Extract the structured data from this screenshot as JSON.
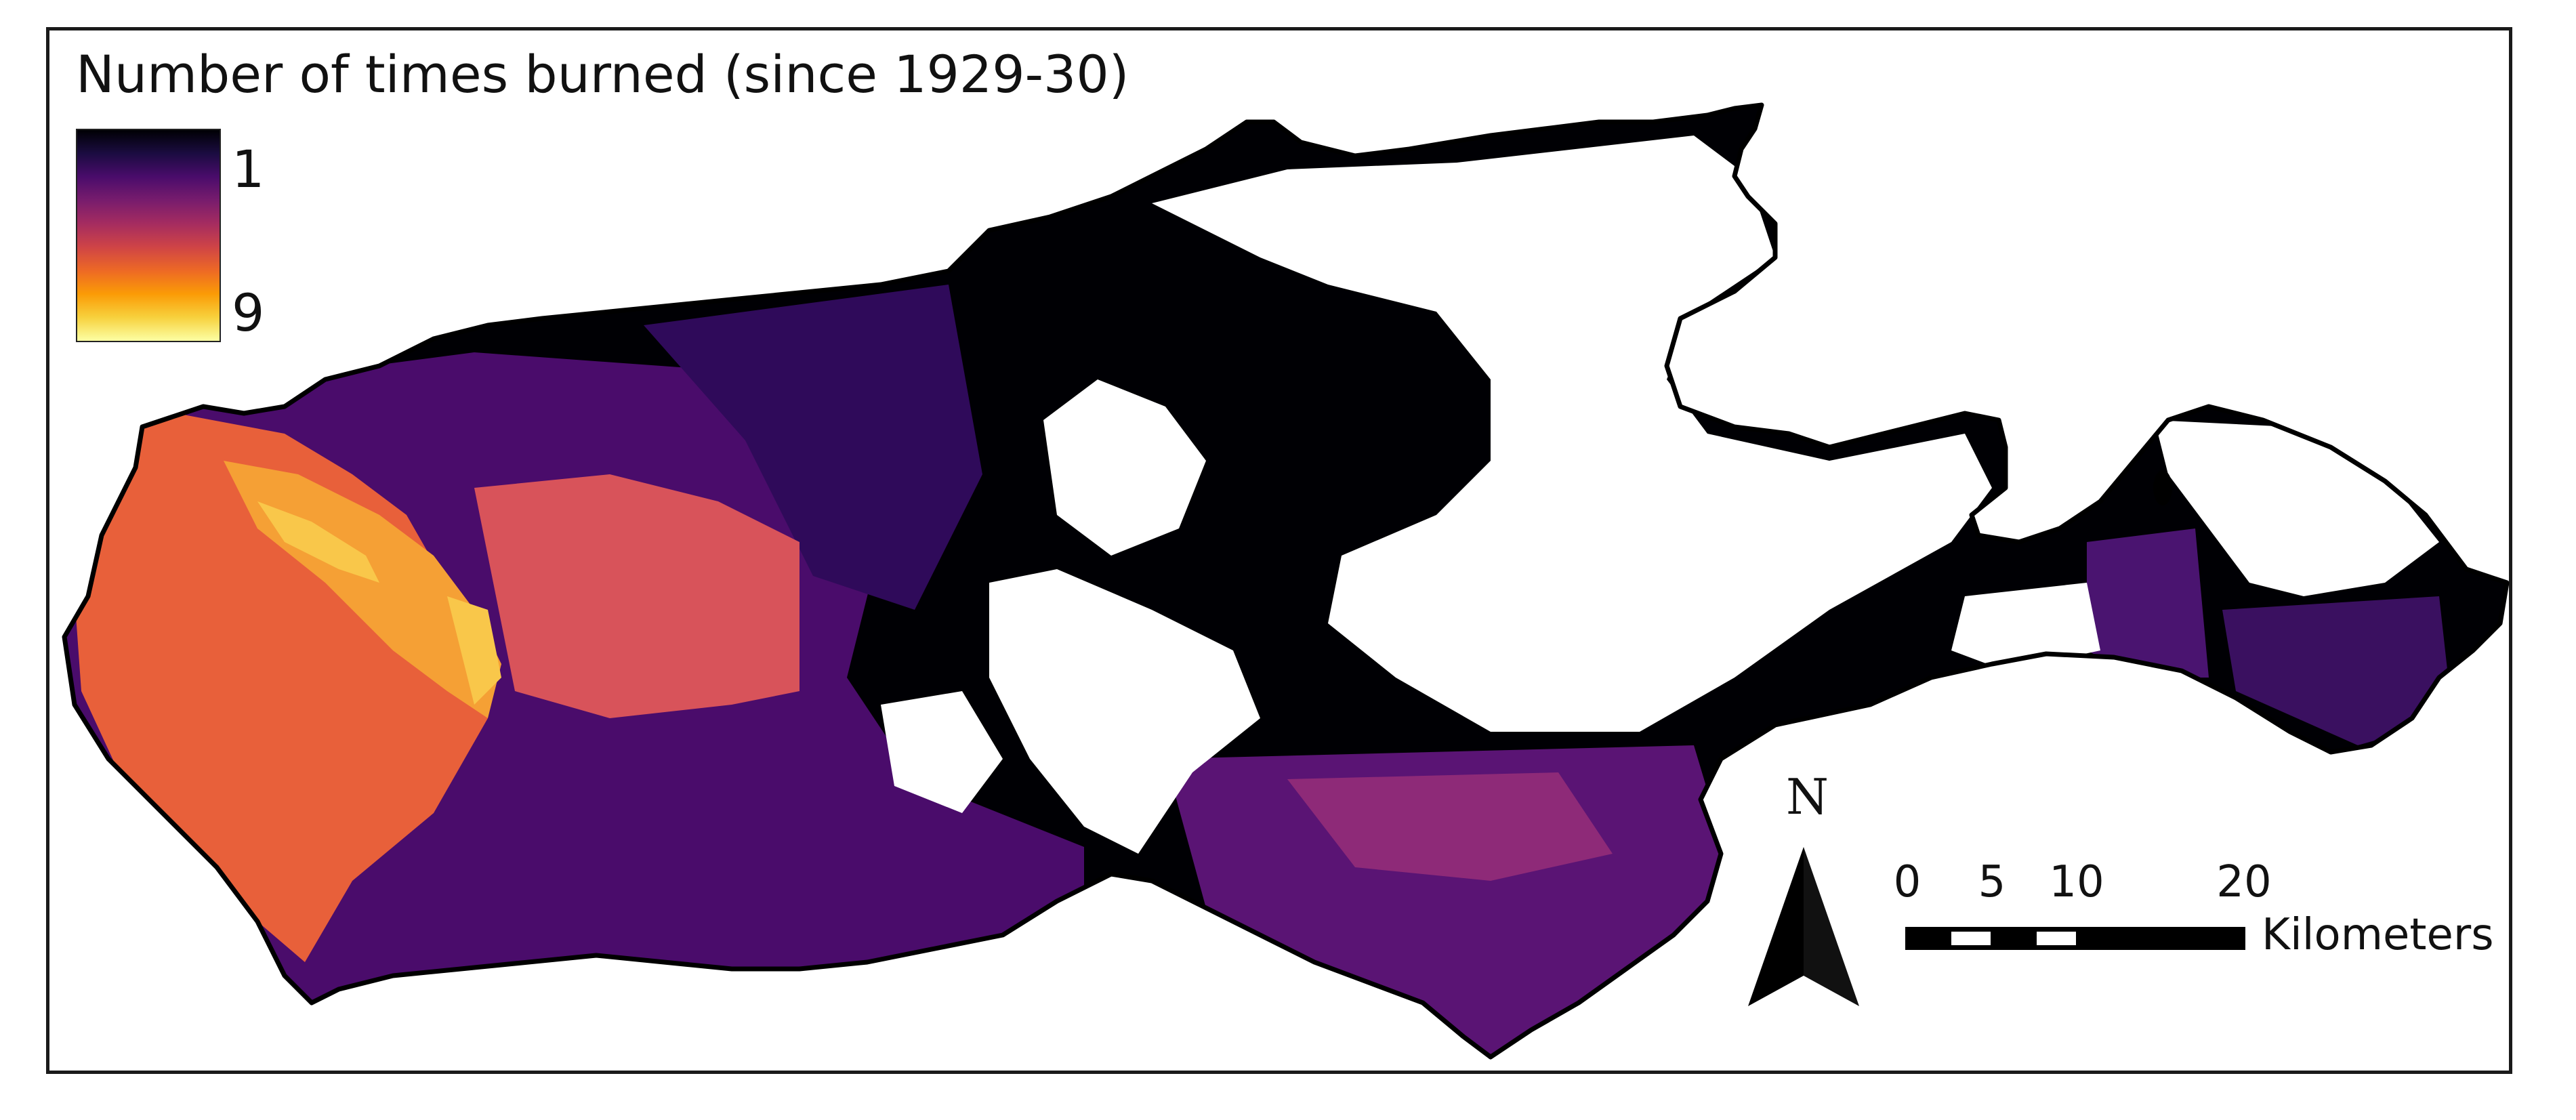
{
  "legend": {
    "title": "Number of times burned (since 1929-30)",
    "min_label": "1",
    "max_label": "9",
    "min_value": 1,
    "max_value": 9,
    "colors": [
      "#000004",
      "#1b0c41",
      "#4a0c6b",
      "#781c6d",
      "#a52c60",
      "#cf4446",
      "#ed6925",
      "#fb9b06",
      "#f7d13d",
      "#fcffa4"
    ]
  },
  "north_arrow": {
    "label": "N"
  },
  "scale_bar": {
    "ticks": [
      "0",
      "5",
      "10",
      "20"
    ],
    "unit": "Kilometers"
  },
  "map": {
    "land_outline_color": "#000000",
    "background": "#ffffff"
  }
}
